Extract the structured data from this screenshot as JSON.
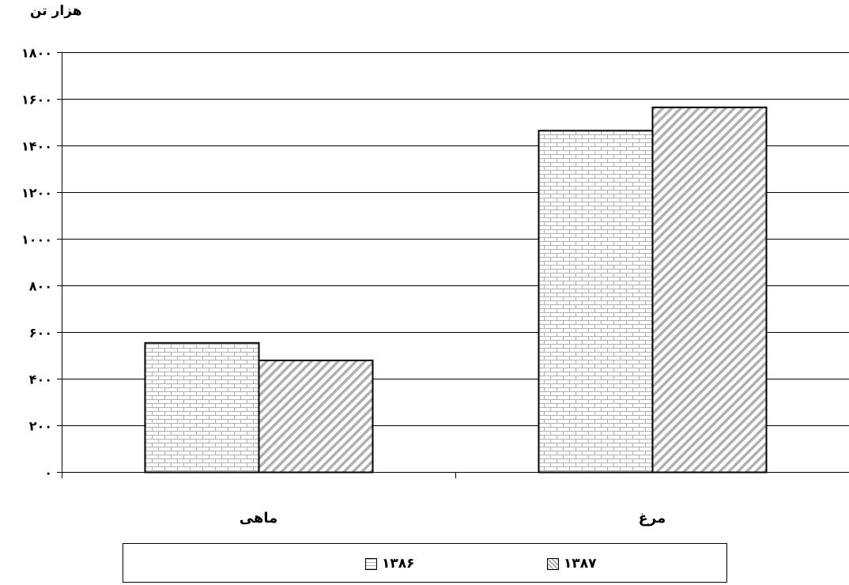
{
  "chart_data": {
    "type": "bar",
    "unit_label": "هزار تن",
    "categories": [
      "مرغ",
      "ماهی"
    ],
    "series": [
      {
        "name": "۱۳۸۶",
        "values": [
          1465,
          555
        ],
        "pattern": "brick"
      },
      {
        "name": "۱۳۸۷",
        "values": [
          1565,
          480
        ],
        "pattern": "diagonal"
      }
    ],
    "ylim": [
      0,
      1800
    ],
    "yticks": [
      0,
      200,
      400,
      600,
      800,
      1000,
      1200,
      1400,
      1600,
      1800
    ],
    "ytick_labels": [
      "۰",
      "۲۰۰",
      "۴۰۰",
      "۶۰۰",
      "۸۰۰",
      "۱۰۰۰",
      "۱۲۰۰",
      "۱۴۰۰",
      "۱۶۰۰",
      "۱۸۰۰"
    ],
    "grid": true,
    "legend_position": "bottom",
    "colors": {
      "fill": "#ffffff",
      "pattern": "#b0b0b0",
      "stroke": "#000000",
      "grid": "#000000"
    }
  }
}
